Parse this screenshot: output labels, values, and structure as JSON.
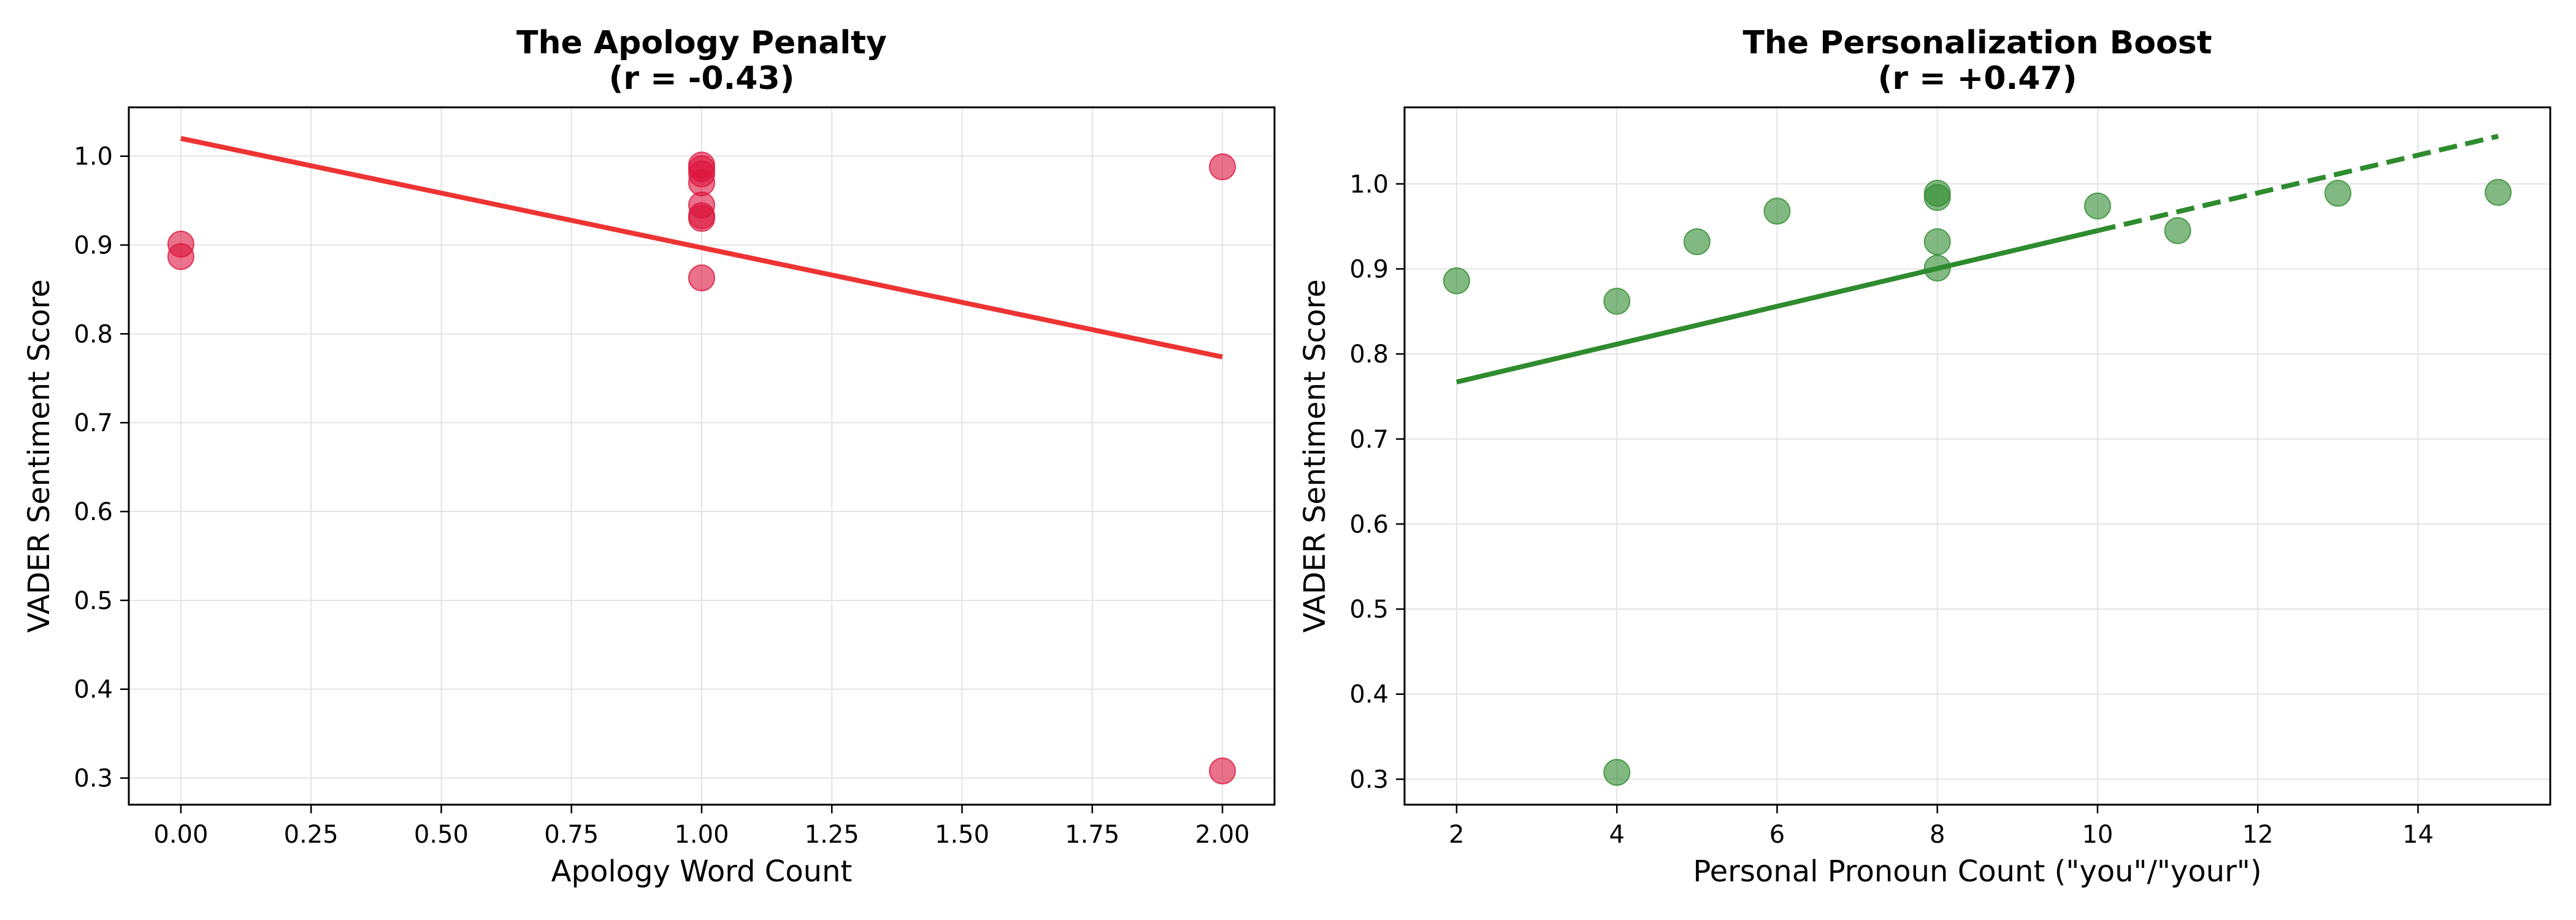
{
  "chart_data": [
    {
      "type": "scatter",
      "title": "The Apology Penalty",
      "subtitle": "(r = -0.43)",
      "xlabel": "Apology Word Count",
      "ylabel": "VADER Sentiment Score",
      "xlim": [
        -0.1,
        2.1
      ],
      "ylim": [
        0.27,
        1.055
      ],
      "xticks": [
        0.0,
        0.25,
        0.5,
        0.75,
        1.0,
        1.25,
        1.5,
        1.75,
        2.0
      ],
      "xtick_labels": [
        "0.00",
        "0.25",
        "0.50",
        "0.75",
        "1.00",
        "1.25",
        "1.50",
        "1.75",
        "2.00"
      ],
      "yticks": [
        0.3,
        0.4,
        0.5,
        0.6,
        0.7,
        0.8,
        0.9,
        1.0
      ],
      "ytick_labels": [
        "0.3",
        "0.4",
        "0.5",
        "0.6",
        "0.7",
        "0.8",
        "0.9",
        "1.0"
      ],
      "grid": true,
      "point_color": "#dc143c",
      "line_color": "#ee3333",
      "points": [
        {
          "x": 0,
          "y": 0.901
        },
        {
          "x": 0,
          "y": 0.887
        },
        {
          "x": 1,
          "y": 0.99
        },
        {
          "x": 1,
          "y": 0.986
        },
        {
          "x": 1,
          "y": 0.98
        },
        {
          "x": 1,
          "y": 0.97
        },
        {
          "x": 1,
          "y": 0.945
        },
        {
          "x": 1,
          "y": 0.933
        },
        {
          "x": 1,
          "y": 0.93
        },
        {
          "x": 1,
          "y": 0.863
        },
        {
          "x": 2,
          "y": 0.988
        },
        {
          "x": 2,
          "y": 0.308
        }
      ],
      "trend_segments": [
        {
          "style": "solid",
          "points": [
            [
              0,
              1.02
            ],
            [
              2,
              0.774
            ]
          ]
        }
      ]
    },
    {
      "type": "scatter",
      "title": "The Personalization Boost",
      "subtitle": "(r = +0.47)",
      "xlabel": "Personal Pronoun Count (\"you\"/\"your\")",
      "ylabel": "VADER Sentiment Score",
      "xlim": [
        1.35,
        15.65
      ],
      "ylim": [
        0.27,
        1.09
      ],
      "xticks": [
        2,
        4,
        6,
        8,
        10,
        12,
        14
      ],
      "xtick_labels": [
        "2",
        "4",
        "6",
        "8",
        "10",
        "12",
        "14"
      ],
      "yticks": [
        0.3,
        0.4,
        0.5,
        0.6,
        0.7,
        0.8,
        0.9,
        1.0
      ],
      "ytick_labels": [
        "0.3",
        "0.4",
        "0.5",
        "0.6",
        "0.7",
        "0.8",
        "0.9",
        "1.0"
      ],
      "grid": true,
      "point_color": "#2e8b2e",
      "line_color": "#2e8b2e",
      "points": [
        {
          "x": 2,
          "y": 0.886
        },
        {
          "x": 4,
          "y": 0.862
        },
        {
          "x": 4,
          "y": 0.308
        },
        {
          "x": 5,
          "y": 0.932
        },
        {
          "x": 6,
          "y": 0.968
        },
        {
          "x": 8,
          "y": 0.989
        },
        {
          "x": 8,
          "y": 0.984
        },
        {
          "x": 8,
          "y": 0.932
        },
        {
          "x": 8,
          "y": 0.901
        },
        {
          "x": 10,
          "y": 0.974
        },
        {
          "x": 11,
          "y": 0.945
        },
        {
          "x": 13,
          "y": 0.989
        },
        {
          "x": 15,
          "y": 0.99
        }
      ],
      "trend_segments": [
        {
          "style": "solid",
          "points": [
            [
              2,
              0.767
            ],
            [
              10,
              0.945
            ]
          ]
        },
        {
          "style": "dashed",
          "points": [
            [
              10,
              0.945
            ],
            [
              15,
              1.056
            ]
          ]
        }
      ]
    }
  ]
}
